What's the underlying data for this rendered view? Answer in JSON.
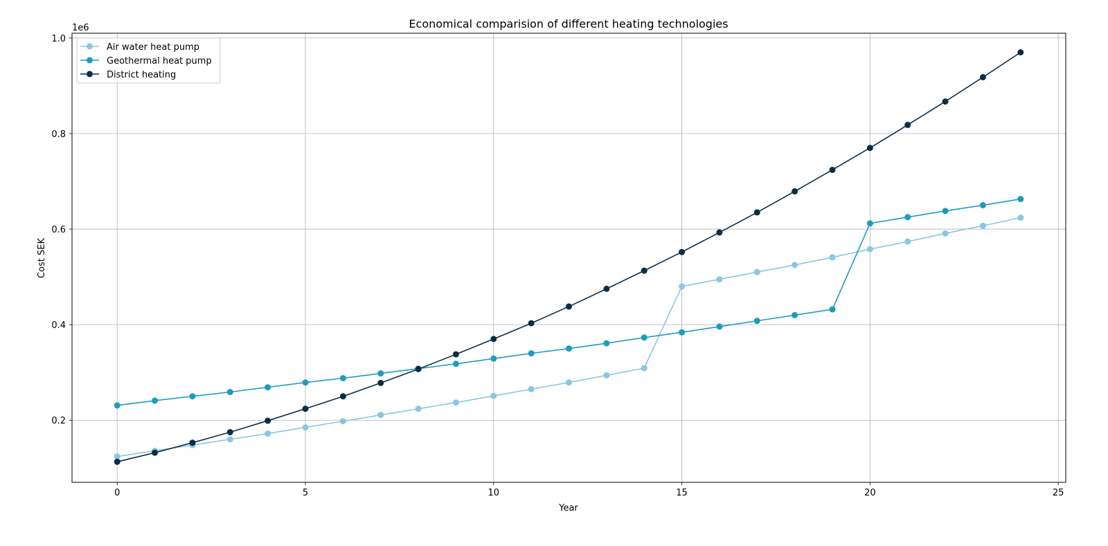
{
  "chart_data": {
    "type": "line",
    "title": "Economical comparision of different heating technologies",
    "xlabel": "Year",
    "ylabel": "Cost SEK",
    "y_offset_label": "1e6",
    "xlim": [
      -1.2,
      25.2
    ],
    "ylim": [
      0.07,
      1.01
    ],
    "x_ticks": [
      0,
      5,
      10,
      15,
      20,
      25
    ],
    "y_ticks": [
      0.2,
      0.4,
      0.6,
      0.8,
      1.0
    ],
    "y_tick_labels": [
      "0.2",
      "0.4",
      "0.6",
      "0.8",
      "1.0"
    ],
    "grid": true,
    "legend_position": "top-left",
    "x": [
      0,
      1,
      2,
      3,
      4,
      5,
      6,
      7,
      8,
      9,
      10,
      11,
      12,
      13,
      14,
      15,
      16,
      17,
      18,
      19,
      20,
      21,
      22,
      23,
      24
    ],
    "series": [
      {
        "name": "Air water heat pump",
        "color": "#89c7e2",
        "values": [
          0.124,
          0.136,
          0.148,
          0.16,
          0.172,
          0.185,
          0.198,
          0.211,
          0.224,
          0.237,
          0.251,
          0.265,
          0.279,
          0.294,
          0.309,
          0.48,
          0.495,
          0.51,
          0.525,
          0.541,
          0.558,
          0.574,
          0.591,
          0.607,
          0.624
        ]
      },
      {
        "name": "Geothermal heat pump",
        "color": "#1f9bbd",
        "values": [
          0.231,
          0.241,
          0.25,
          0.259,
          0.269,
          0.279,
          0.288,
          0.298,
          0.308,
          0.318,
          0.329,
          0.34,
          0.35,
          0.361,
          0.373,
          0.384,
          0.396,
          0.408,
          0.42,
          0.432,
          0.612,
          0.625,
          0.638,
          0.65,
          0.663
        ]
      },
      {
        "name": "District heating",
        "color": "#0d2d45",
        "values": [
          0.113,
          0.132,
          0.153,
          0.175,
          0.199,
          0.224,
          0.25,
          0.278,
          0.307,
          0.338,
          0.37,
          0.403,
          0.438,
          0.475,
          0.513,
          0.552,
          0.593,
          0.635,
          0.679,
          0.724,
          0.77,
          0.818,
          0.867,
          0.918,
          0.97
        ]
      }
    ]
  }
}
